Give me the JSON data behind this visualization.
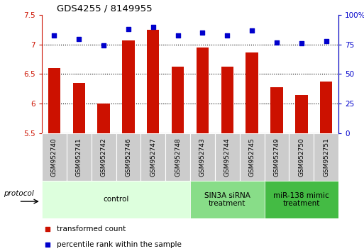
{
  "title": "GDS4255 / 8149955",
  "samples": [
    "GSM952740",
    "GSM952741",
    "GSM952742",
    "GSM952746",
    "GSM952747",
    "GSM952748",
    "GSM952743",
    "GSM952744",
    "GSM952745",
    "GSM952749",
    "GSM952750",
    "GSM952751"
  ],
  "bar_values": [
    6.6,
    6.35,
    6.0,
    7.07,
    7.25,
    6.63,
    6.95,
    6.63,
    6.87,
    6.28,
    6.15,
    6.37
  ],
  "dot_values": [
    83,
    80,
    74,
    88,
    90,
    83,
    85,
    83,
    87,
    77,
    76,
    78
  ],
  "ylim_left": [
    5.5,
    7.5
  ],
  "ylim_right": [
    0,
    100
  ],
  "yticks_left": [
    5.5,
    6.0,
    6.5,
    7.0,
    7.5
  ],
  "ytick_labels_left": [
    "5.5",
    "6",
    "6.5",
    "7",
    "7.5"
  ],
  "yticks_right": [
    0,
    25,
    50,
    75,
    100
  ],
  "ytick_labels_right": [
    "0",
    "25",
    "50",
    "75",
    "100%"
  ],
  "bar_color": "#cc1100",
  "dot_color": "#0000cc",
  "bar_bottom": 5.5,
  "bar_width": 0.5,
  "groups": [
    {
      "label": "control",
      "start": 0,
      "end": 6,
      "color": "#ddffdd"
    },
    {
      "label": "SIN3A siRNA\ntreatment",
      "start": 6,
      "end": 9,
      "color": "#88dd88"
    },
    {
      "label": "miR-138 mimic\ntreatment",
      "start": 9,
      "end": 12,
      "color": "#44bb44"
    }
  ],
  "legend_items": [
    {
      "label": "transformed count",
      "color": "#cc1100"
    },
    {
      "label": "percentile rank within the sample",
      "color": "#0000cc"
    }
  ],
  "protocol_label": "protocol",
  "tick_label_color_left": "#cc1100",
  "tick_label_color_right": "#0000cc",
  "sample_box_color": "#cccccc",
  "grid_yticks": [
    6.0,
    6.5,
    7.0
  ]
}
